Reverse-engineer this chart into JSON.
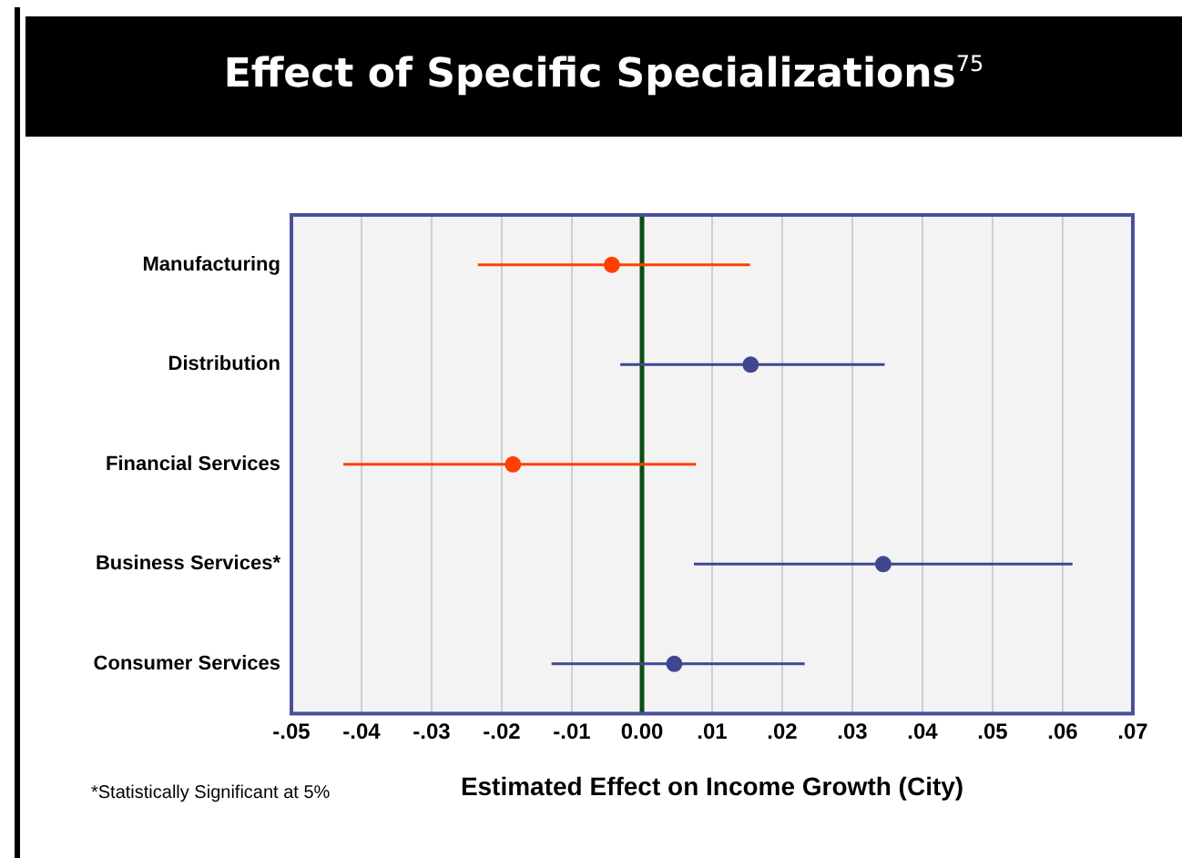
{
  "chart_data": {
    "type": "scatter",
    "orientation": "horizontal",
    "title": "Effect of Specific Specializations$^{75}$",
    "xlabel": "Estimated Effect on Income Growth (City)",
    "categories": [
      "Manufacturing",
      "Distribution",
      "Financial Services",
      "Business Services*",
      "Consumer Services"
    ],
    "values": [
      -0.0043,
      0.0155,
      -0.0184,
      0.0344,
      0.0046
    ],
    "errors": [
      [
        -0.0234,
        0.0154
      ],
      [
        -0.0031,
        0.0346
      ],
      [
        -0.0426,
        0.0077
      ],
      [
        0.0074,
        0.0614
      ],
      [
        -0.0129,
        0.0232
      ]
    ],
    "colors": [
      "#ff4000",
      "#3f4791",
      "#ff4000",
      "#3f4791",
      "#3f4791"
    ],
    "xlim": [
      -0.05,
      0.07
    ],
    "xticks": [
      {
        "value": -0.05,
        "label": "-.05"
      },
      {
        "value": -0.04,
        "label": "-.04"
      },
      {
        "value": -0.03,
        "label": "-.03"
      },
      {
        "value": -0.02,
        "label": "-.02"
      },
      {
        "value": -0.01,
        "label": "-.01"
      },
      {
        "value": 0,
        "label": "0.00"
      },
      {
        "value": 0.01,
        "label": ".01"
      },
      {
        "value": 0.02,
        "label": ".02"
      },
      {
        "value": 0.03,
        "label": ".03"
      },
      {
        "value": 0.04,
        "label": ".04"
      },
      {
        "value": 0.05,
        "label": ".05"
      },
      {
        "value": 0.06,
        "label": ".06"
      },
      {
        "value": 0.07,
        "label": ".07"
      }
    ],
    "ref_lines": [
      {
        "axis": "x",
        "value": 0,
        "color": "#0b4d12"
      }
    ],
    "grid": "x",
    "marker": "circle",
    "legend": false,
    "annotations": [
      "*Statistically Significant at 5%"
    ]
  }
}
